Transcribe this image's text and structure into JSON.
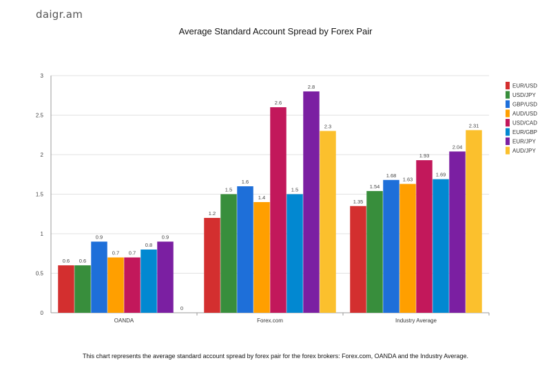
{
  "brand": "daigr.am",
  "caption": "This chart represents the average standard account spread by forex pair for the forex brokers: Forex.com, OANDA and the Industry Average.",
  "chart_data": {
    "type": "bar",
    "title": "Average Standard Account Spread by Forex Pair",
    "xlabel": "",
    "ylabel": "",
    "ylim": [
      0,
      3
    ],
    "yticks": [
      "0",
      "0.5",
      "1",
      "1.5",
      "2",
      "2.5",
      "3"
    ],
    "grid": true,
    "legend_position": "right",
    "categories": [
      "OANDA",
      "Forex.com",
      "Industry Average"
    ],
    "series": [
      {
        "name": "EUR/USD",
        "color": "#d32f2f",
        "values": [
          0.6,
          1.2,
          1.35
        ],
        "labels": [
          "0.6",
          "1.2",
          "1.35"
        ]
      },
      {
        "name": "USD/JPY",
        "color": "#388e3c",
        "values": [
          0.6,
          1.5,
          1.54
        ],
        "labels": [
          "0.6",
          "1.5",
          "1.54"
        ]
      },
      {
        "name": "GBP/USD",
        "color": "#1e6fd9",
        "values": [
          0.9,
          1.6,
          1.68
        ],
        "labels": [
          "0.9",
          "1.6",
          "1.68"
        ]
      },
      {
        "name": "AUD/USD",
        "color": "#ff9f00",
        "values": [
          0.7,
          1.4,
          1.63
        ],
        "labels": [
          "0.7",
          "1.4",
          "1.63"
        ]
      },
      {
        "name": "USD/CAD",
        "color": "#c2185b",
        "values": [
          0.7,
          2.6,
          1.93
        ],
        "labels": [
          "0.7",
          "2.6",
          "1.93"
        ]
      },
      {
        "name": "EUR/GBP",
        "color": "#0288d1",
        "values": [
          0.8,
          1.5,
          1.69
        ],
        "labels": [
          "0.8",
          "1.5",
          "1.69"
        ]
      },
      {
        "name": "EUR/JPY",
        "color": "#7b1fa2",
        "values": [
          0.9,
          2.8,
          2.04
        ],
        "labels": [
          "0.9",
          "2.8",
          "2.04"
        ]
      },
      {
        "name": "AUD/JPY",
        "color": "#fbc02d",
        "values": [
          0,
          2.3,
          2.31
        ],
        "labels": [
          "0",
          "2.3",
          "2.31"
        ]
      }
    ]
  }
}
